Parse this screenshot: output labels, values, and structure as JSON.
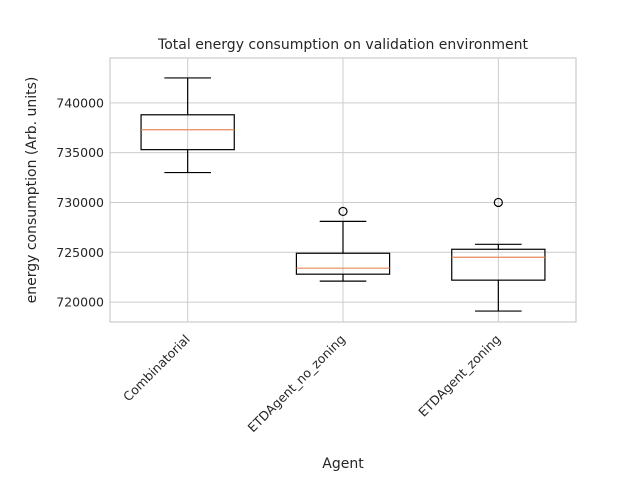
{
  "chart_data": {
    "type": "box",
    "title": "Total energy consumption on validation environment",
    "xlabel": "Agent",
    "ylabel": "energy consumption (Arb. units)",
    "categories": [
      "Combinatorial",
      "ETDAgent_no_zoning",
      "ETDAgent_zoning"
    ],
    "ylim": [
      718000,
      744500
    ],
    "yticks": [
      720000,
      725000,
      730000,
      735000,
      740000
    ],
    "ytick_labels": [
      "720000",
      "725000",
      "730000",
      "735000",
      "740000"
    ],
    "grid": true,
    "boxes": [
      {
        "category": "Combinatorial",
        "whisker_low": 733000,
        "q1": 735300,
        "median": 737300,
        "q3": 738800,
        "whisker_high": 742500,
        "fliers": []
      },
      {
        "category": "ETDAgent_no_zoning",
        "whisker_low": 722100,
        "q1": 722800,
        "median": 723400,
        "q3": 724900,
        "whisker_high": 728100,
        "fliers": [
          729100
        ]
      },
      {
        "category": "ETDAgent_zoning",
        "whisker_low": 719100,
        "q1": 722200,
        "median": 724500,
        "q3": 725300,
        "whisker_high": 725800,
        "fliers": [
          730000
        ]
      }
    ],
    "colors": {
      "median": "#e8885a",
      "box": "#000000",
      "grid": "#cccccc"
    }
  }
}
